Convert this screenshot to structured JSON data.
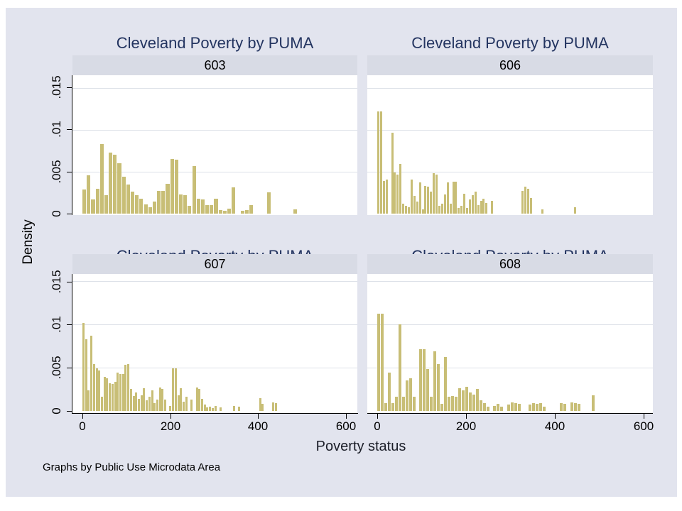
{
  "figure": {
    "panel_title": "Cleveland Poverty by PUMA",
    "xlabel": "Poverty status",
    "ylabel": "Density",
    "footnote": "Graphs by Public Use Microdata Area"
  },
  "axes": {
    "y_tick_labels": [
      ".015",
      ".01",
      ".005",
      "0"
    ],
    "x_tick_labels": [
      "0",
      "200",
      "400",
      "600"
    ]
  },
  "colors": {
    "canvas": "#e2e4ee",
    "header_band": "#d8dbe5",
    "plot_background": "#ffffff",
    "bar_fill": "#c8be76",
    "gridline": "#dde1e8",
    "title_text": "#233460",
    "axis_text": "#000000"
  },
  "chart_data": [
    {
      "type": "bar",
      "subtype": "histogram",
      "puma": "603",
      "title": "Cleveland Poverty by PUMA",
      "xlabel": "Poverty status",
      "ylabel": "Density",
      "x_range": [
        0,
        600
      ],
      "y_range": [
        0,
        0.0165
      ],
      "y_ticks": [
        0,
        0.005,
        0.01,
        0.015
      ],
      "grid": true,
      "bin_start": 0,
      "bin_width": 10,
      "values": [
        0.0029,
        0.0046,
        0.0017,
        0.003,
        0.0083,
        0.0022,
        0.0073,
        0.007,
        0.006,
        0.0044,
        0.0035,
        0.0026,
        0.0022,
        0.0018,
        0.0011,
        0.0008,
        0.0014,
        0.0027,
        0.0027,
        0.0036,
        0.0065,
        0.0064,
        0.0023,
        0.0022,
        0.0009,
        0.0057,
        0.0018,
        0.0017,
        0.001,
        0.001,
        0.0018,
        0.0004,
        0.0003,
        0.0006,
        0.0031,
        0,
        0.0003,
        0.0004,
        0.001,
        0,
        0,
        0,
        0.0025,
        0,
        0,
        0,
        0,
        0,
        0.0005,
        0,
        0,
        0
      ]
    },
    {
      "type": "bar",
      "subtype": "histogram",
      "puma": "606",
      "title": "Cleveland Poverty by PUMA",
      "xlabel": "Poverty status",
      "ylabel": "Density",
      "x_range": [
        0,
        600
      ],
      "y_range": [
        0,
        0.0165
      ],
      "y_ticks": [
        0,
        0.005,
        0.01,
        0.015
      ],
      "grid": true,
      "bin_start": 0,
      "bin_width": 6.25,
      "values": [
        0.0122,
        0.0122,
        0.0039,
        0.0041,
        0,
        0.0097,
        0.0049,
        0.0047,
        0.0059,
        0.0012,
        0.0009,
        0.0008,
        0.0041,
        0.0021,
        0.0014,
        0.0037,
        0.0005,
        0.0033,
        0.0032,
        0.0026,
        0.0048,
        0.0047,
        0.0009,
        0.0012,
        0.0023,
        0.0037,
        0.0012,
        0.0038,
        0.0038,
        0.0007,
        0.0009,
        0.0024,
        0.0007,
        0.0017,
        0.0022,
        0.0026,
        0.001,
        0.0015,
        0.0018,
        0.0013,
        0,
        0.0015,
        0,
        0,
        0,
        0,
        0,
        0,
        0,
        0,
        0,
        0,
        0.0027,
        0.0032,
        0.003,
        0.0019,
        0,
        0,
        0,
        0.0005,
        0,
        0,
        0,
        0,
        0,
        0,
        0,
        0,
        0,
        0,
        0,
        0.0008
      ]
    },
    {
      "type": "bar",
      "subtype": "histogram",
      "puma": "607",
      "title": "Cleveland Poverty by PUMA",
      "xlabel": "Poverty status",
      "ylabel": "Density",
      "x_range": [
        0,
        600
      ],
      "y_range": [
        0,
        0.0165
      ],
      "y_ticks": [
        0,
        0.005,
        0.01,
        0.015
      ],
      "grid": true,
      "bin_start": 0,
      "bin_width": 6,
      "values": [
        0.0102,
        0.0083,
        0.0024,
        0.0087,
        0.0054,
        0.0049,
        0.0047,
        0.0016,
        0.0039,
        0.0038,
        0.0032,
        0.0031,
        0.0034,
        0.0044,
        0.0043,
        0.0043,
        0.0053,
        0.0054,
        0.0025,
        0.0017,
        0.0021,
        0.0014,
        0.0018,
        0.0026,
        0.0012,
        0.0016,
        0.0024,
        0.0009,
        0.0013,
        0.0027,
        0.0025,
        0.0013,
        0,
        0.0006,
        0.0049,
        0.0049,
        0.0018,
        0.0026,
        0.0011,
        0.0016,
        0,
        0.0013,
        0,
        0.0027,
        0.0025,
        0.0014,
        0.0007,
        0.0004,
        0.0005,
        0.0003,
        0.0006,
        0,
        0.0004,
        0,
        0,
        0,
        0,
        0.0006,
        0,
        0.0005,
        0,
        0,
        0,
        0,
        0,
        0,
        0,
        0.0015,
        0.0008,
        0,
        0,
        0,
        0.001,
        0.0009
      ]
    },
    {
      "type": "bar",
      "subtype": "histogram",
      "puma": "608",
      "title": "Cleveland Poverty by PUMA",
      "xlabel": "Poverty status",
      "ylabel": "Density",
      "x_range": [
        0,
        600
      ],
      "y_range": [
        0,
        0.0165
      ],
      "y_ticks": [
        0,
        0.005,
        0.01,
        0.015
      ],
      "grid": true,
      "bin_start": 0,
      "bin_width": 8,
      "values": [
        0.0112,
        0.0112,
        0.0009,
        0.0044,
        0.0009,
        0.0016,
        0.01,
        0.0016,
        0.0035,
        0.0038,
        0.0016,
        0,
        0.0071,
        0.0071,
        0.0048,
        0.0016,
        0.0069,
        0.0054,
        0.0008,
        0.0062,
        0.0016,
        0.0017,
        0.0016,
        0.0026,
        0.0024,
        0.0028,
        0.0021,
        0.0019,
        0.0025,
        0.0012,
        0.0009,
        0.0005,
        0,
        0.0006,
        0.0008,
        0.0005,
        0,
        0.0007,
        0.001,
        0.0009,
        0.0008,
        0,
        0,
        0.0007,
        0.0009,
        0.0008,
        0.0009,
        0.0005,
        0,
        0,
        0,
        0,
        0.0009,
        0.0008,
        0,
        0.001,
        0.0009,
        0.0008,
        0,
        0,
        0,
        0.0018
      ]
    }
  ]
}
